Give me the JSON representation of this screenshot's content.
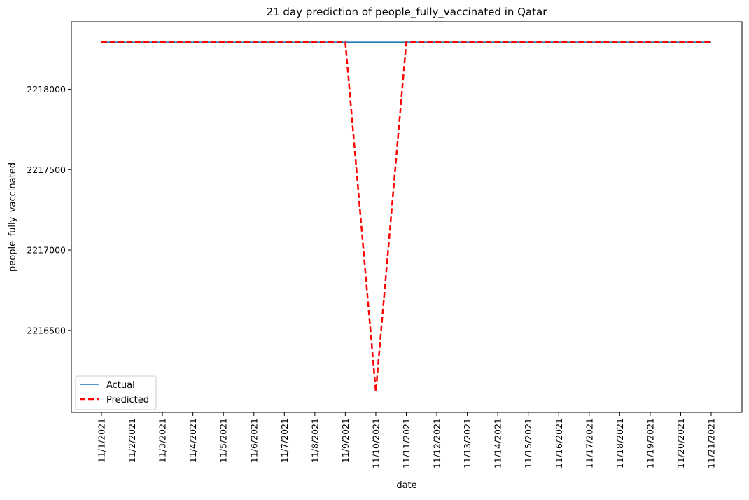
{
  "chart_data": {
    "type": "line",
    "title": "21 day prediction of people_fully_vaccinated in Qatar",
    "xlabel": "date",
    "ylabel": "people_fully_vaccinated",
    "x": [
      "11/1/2021",
      "11/2/2021",
      "11/3/2021",
      "11/4/2021",
      "11/5/2021",
      "11/6/2021",
      "11/7/2021",
      "11/8/2021",
      "11/9/2021",
      "11/10/2021",
      "11/11/2021",
      "11/12/2021",
      "11/13/2021",
      "11/14/2021",
      "11/15/2021",
      "11/16/2021",
      "11/17/2021",
      "11/18/2021",
      "11/19/2021",
      "11/20/2021",
      "11/21/2021"
    ],
    "yticks": [
      2216500,
      2217000,
      2217500,
      2218000
    ],
    "ylim": [
      2215990,
      2218420
    ],
    "grid": false,
    "legend_position": "lower-left",
    "series": [
      {
        "name": "Actual",
        "color": "#1f77b4",
        "style": "solid",
        "values": [
          2218293,
          2218293,
          2218293,
          2218293,
          2218293,
          2218293,
          2218293,
          2218293,
          2218293,
          2218293,
          2218293,
          2218293,
          2218293,
          2218293,
          2218293,
          2218293,
          2218293,
          2218293,
          2218293,
          2218293,
          2218293
        ]
      },
      {
        "name": "Predicted",
        "color": "#ff0000",
        "style": "dashed",
        "values": [
          2218293,
          2218293,
          2218293,
          2218293,
          2218293,
          2218293,
          2218293,
          2218293,
          2218293,
          2216120,
          2218293,
          2218293,
          2218293,
          2218293,
          2218293,
          2218293,
          2218293,
          2218293,
          2218293,
          2218293,
          2218293
        ]
      }
    ]
  }
}
